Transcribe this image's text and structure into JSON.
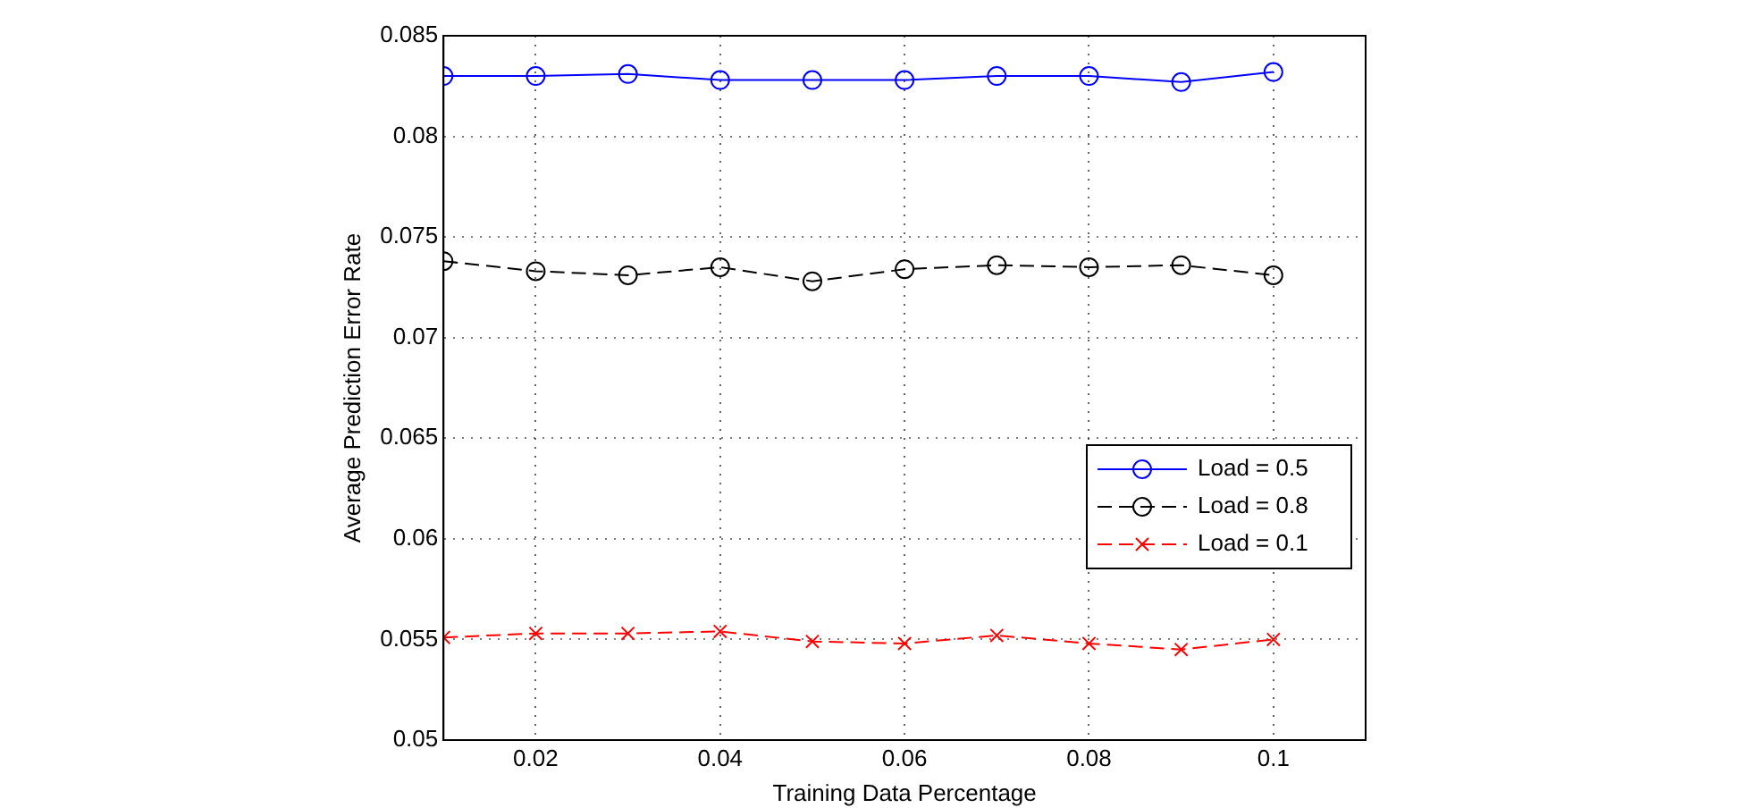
{
  "chart_data": {
    "type": "line",
    "xlabel": "Training Data Percentage",
    "ylabel": "Average Prediction Error Rate",
    "x": [
      0.01,
      0.02,
      0.03,
      0.04,
      0.05,
      0.06,
      0.07,
      0.08,
      0.09,
      0.1
    ],
    "xlim": [
      0.01,
      0.11
    ],
    "xticks": [
      0.02,
      0.04,
      0.06,
      0.08,
      0.1
    ],
    "ylim": [
      0.05,
      0.085
    ],
    "yticks": [
      0.05,
      0.055,
      0.06,
      0.065,
      0.07,
      0.075,
      0.08,
      0.085
    ],
    "grid": true,
    "legend": "bottom right",
    "series": [
      {
        "name": "Load = 0.5",
        "color": "#0000ff",
        "marker": "circle",
        "line_style": "solid",
        "values": [
          0.083,
          0.083,
          0.0831,
          0.0828,
          0.0828,
          0.0828,
          0.083,
          0.083,
          0.0827,
          0.0832
        ]
      },
      {
        "name": "Load = 0.8",
        "color": "#000000",
        "marker": "circle",
        "line_style": "dashed",
        "values": [
          0.0738,
          0.0733,
          0.0731,
          0.0735,
          0.0728,
          0.0734,
          0.0736,
          0.0735,
          0.0736,
          0.0731
        ]
      },
      {
        "name": "Load = 0.1",
        "color": "#ff0000",
        "marker": "cross",
        "line_style": "dashed",
        "values": [
          0.0551,
          0.0553,
          0.0553,
          0.0554,
          0.0549,
          0.0548,
          0.0552,
          0.0548,
          0.0545,
          0.055
        ]
      }
    ]
  }
}
